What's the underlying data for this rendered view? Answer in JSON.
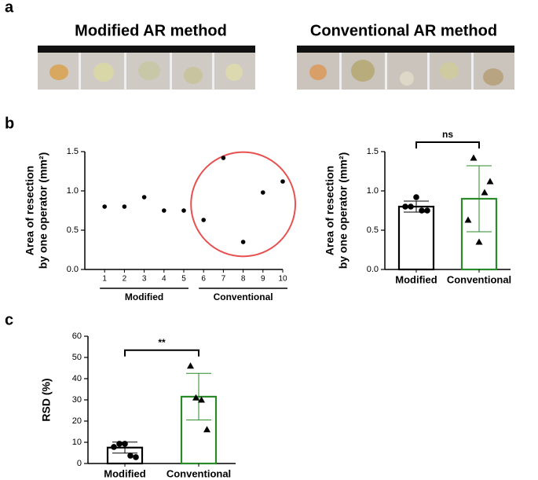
{
  "panel_labels": [
    "a",
    "b",
    "c"
  ],
  "photo_titles": [
    "Modified AR method",
    "Conventional AR method"
  ],
  "chart_data": [
    {
      "type": "scatter",
      "ylabel": [
        "Area of resection",
        "by one operator (mm²)"
      ],
      "x": [
        1,
        2,
        3,
        4,
        5,
        6,
        7,
        8,
        9,
        10
      ],
      "values": [
        0.8,
        0.8,
        0.92,
        0.75,
        0.75,
        0.63,
        1.42,
        0.35,
        0.98,
        1.12
      ],
      "xlim": [
        0,
        10
      ],
      "xticks": [
        1,
        2,
        3,
        4,
        5,
        6,
        7,
        8,
        9,
        10
      ],
      "ylim": [
        0,
        1.5
      ],
      "yticks": [
        {
          "value": 0,
          "label": "0.0"
        },
        {
          "value": 0.5,
          "label": "0.5"
        },
        {
          "value": 1,
          "label": "1.0"
        },
        {
          "value": 1.5,
          "label": "1.5"
        }
      ],
      "groups": [
        {
          "label": "Modified",
          "range": [
            1,
            5
          ]
        },
        {
          "label": "Conventional",
          "range": [
            6,
            10
          ]
        }
      ],
      "highlight_group": 1,
      "highlight_color": "#e8504f",
      "color": "#000000"
    },
    {
      "type": "bar",
      "ylabel": [
        "Area of resection",
        "by one operator (mm²)"
      ],
      "categories": [
        "Modified",
        "Conventional"
      ],
      "values": [
        0.8,
        0.9
      ],
      "errors": [
        0.07,
        0.42
      ],
      "points": [
        [
          0.8,
          0.8,
          0.92,
          0.75,
          0.75
        ],
        [
          0.63,
          1.42,
          0.35,
          0.98,
          1.12
        ]
      ],
      "markers": [
        "circle",
        "triangle"
      ],
      "colors": [
        "#000000",
        "#2a8a2a"
      ],
      "ylim": [
        0,
        1.5
      ],
      "yticks": [
        {
          "value": 0,
          "label": "0.0"
        },
        {
          "value": 0.5,
          "label": "0.5"
        },
        {
          "value": 1,
          "label": "1.0"
        },
        {
          "value": 1.5,
          "label": "1.5"
        }
      ],
      "significance": "ns"
    },
    {
      "type": "bar",
      "ylabel": [
        "RSD (%)"
      ],
      "categories": [
        "Modified",
        "Conventional"
      ],
      "values": [
        7.5,
        31.5
      ],
      "errors": [
        2.6,
        11
      ],
      "points": [
        [
          7.8,
          9.3,
          9.3,
          3.7,
          3.0
        ],
        [
          46,
          31,
          30,
          16
        ]
      ],
      "markers": [
        "circle",
        "triangle"
      ],
      "colors": [
        "#000000",
        "#2a8a2a"
      ],
      "ylim": [
        0,
        60
      ],
      "yticks": [
        0,
        10,
        20,
        30,
        40,
        50,
        60
      ],
      "significance": "**"
    }
  ]
}
